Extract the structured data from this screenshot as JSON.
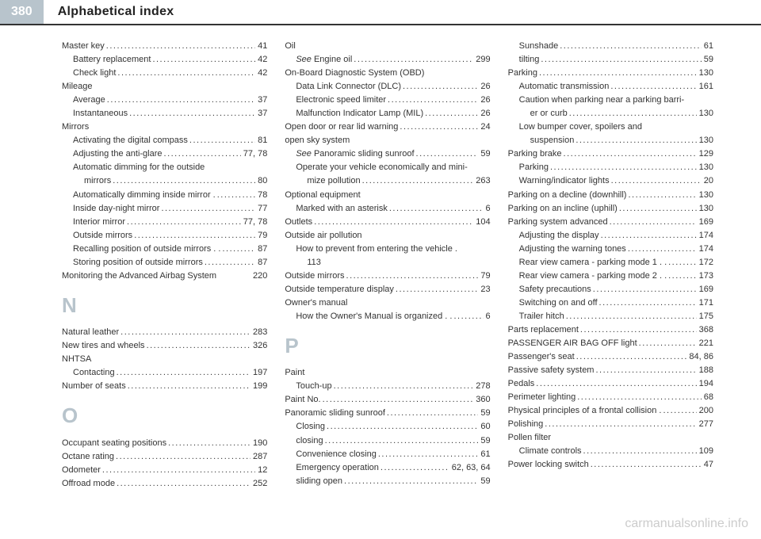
{
  "header": {
    "page_num": "380",
    "title": "Alphabetical index"
  },
  "watermark": "carmanualsonline.info",
  "col1": [
    {
      "t": "e",
      "label": "Master key",
      "pg": "41"
    },
    {
      "t": "s",
      "label": "Battery replacement",
      "pg": "42"
    },
    {
      "t": "s",
      "label": "Check light",
      "pg": "42"
    },
    {
      "t": "h",
      "label": "Mileage"
    },
    {
      "t": "s",
      "label": "Average",
      "pg": "37"
    },
    {
      "t": "s",
      "label": "Instantaneous",
      "pg": "37"
    },
    {
      "t": "h",
      "label": "Mirrors"
    },
    {
      "t": "s",
      "label": "Activating the digital compass",
      "pg": "81"
    },
    {
      "t": "s",
      "label": "Adjusting the anti-glare",
      "pg": "77, 78"
    },
    {
      "t": "w",
      "label": "Automatic dimming for the outside"
    },
    {
      "t": "s2",
      "label": "mirrors",
      "pg": "80"
    },
    {
      "t": "s",
      "label": "Automatically dimming inside mirror .",
      "pg": "78"
    },
    {
      "t": "s",
      "label": "Inside day-night mirror",
      "pg": "77"
    },
    {
      "t": "s",
      "label": "Interior mirror",
      "pg": "77, 78"
    },
    {
      "t": "s",
      "label": "Outside mirrors",
      "pg": "79"
    },
    {
      "t": "s",
      "label": "Recalling position of outside mirrors . .",
      "pg": "87"
    },
    {
      "t": "s",
      "label": "Storing position of outside mirrors",
      "pg": "87"
    },
    {
      "t": "e",
      "label": "Monitoring the Advanced Airbag System",
      "pg": "220",
      "nodots": true
    },
    {
      "t": "L",
      "label": "N"
    },
    {
      "t": "e",
      "label": "Natural leather",
      "pg": "283"
    },
    {
      "t": "e",
      "label": "New tires and wheels",
      "pg": "326"
    },
    {
      "t": "h",
      "label": "NHTSA"
    },
    {
      "t": "s",
      "label": "Contacting",
      "pg": "197"
    },
    {
      "t": "e",
      "label": "Number of seats",
      "pg": "199"
    },
    {
      "t": "L",
      "label": "O"
    },
    {
      "t": "e",
      "label": "Occupant seating positions",
      "pg": "190"
    },
    {
      "t": "e",
      "label": "Octane rating",
      "pg": "287"
    },
    {
      "t": "e",
      "label": "Odometer",
      "pg": "12"
    },
    {
      "t": "e",
      "label": "Offroad mode",
      "pg": "252"
    }
  ],
  "col2": [
    {
      "t": "h",
      "label": "Oil"
    },
    {
      "t": "s",
      "label": "See Engine oil",
      "pg": "299",
      "italic": "See"
    },
    {
      "t": "h",
      "label": "On-Board Diagnostic System (OBD)"
    },
    {
      "t": "s",
      "label": "Data Link Connector (DLC)",
      "pg": "26"
    },
    {
      "t": "s",
      "label": "Electronic speed limiter",
      "pg": "26"
    },
    {
      "t": "s",
      "label": "Malfunction Indicator Lamp (MIL)",
      "pg": "26"
    },
    {
      "t": "e",
      "label": "Open door or rear lid warning",
      "pg": "24"
    },
    {
      "t": "h",
      "label": "open sky system"
    },
    {
      "t": "s",
      "label": "See Panoramic sliding sunroof",
      "pg": "59",
      "italic": "See"
    },
    {
      "t": "w",
      "label": "Operate your vehicle economically and mini-"
    },
    {
      "t": "s2",
      "label": "mize pollution",
      "pg": "263"
    },
    {
      "t": "h",
      "label": "Optional equipment"
    },
    {
      "t": "s",
      "label": "Marked with an asterisk",
      "pg": "6"
    },
    {
      "t": "e",
      "label": "Outlets",
      "pg": "104"
    },
    {
      "t": "h",
      "label": "Outside air pollution"
    },
    {
      "t": "w",
      "label": "How to prevent from entering the vehicle ."
    },
    {
      "t": "s2n",
      "label": "113"
    },
    {
      "t": "e",
      "label": "Outside mirrors",
      "pg": "79"
    },
    {
      "t": "e",
      "label": "Outside temperature display",
      "pg": "23"
    },
    {
      "t": "h",
      "label": "Owner's manual"
    },
    {
      "t": "s",
      "label": "How the Owner's Manual is organized . .",
      "pg": "6"
    },
    {
      "t": "L",
      "label": "P"
    },
    {
      "t": "h",
      "label": "Paint"
    },
    {
      "t": "s",
      "label": "Touch-up",
      "pg": "278"
    },
    {
      "t": "e",
      "label": "Paint No.",
      "pg": "360"
    },
    {
      "t": "e",
      "label": "Panoramic sliding sunroof",
      "pg": "59"
    },
    {
      "t": "s",
      "label": "Closing",
      "pg": "60"
    },
    {
      "t": "s",
      "label": "closing",
      "pg": "59"
    },
    {
      "t": "s",
      "label": "Convenience closing",
      "pg": "61"
    },
    {
      "t": "s",
      "label": "Emergency operation",
      "pg": "62, 63, 64"
    },
    {
      "t": "s",
      "label": "sliding open",
      "pg": "59"
    }
  ],
  "col3": [
    {
      "t": "s",
      "label": "Sunshade",
      "pg": "61"
    },
    {
      "t": "s",
      "label": "tilting",
      "pg": "59"
    },
    {
      "t": "e",
      "label": "Parking",
      "pg": "130"
    },
    {
      "t": "s",
      "label": "Automatic transmission",
      "pg": "161"
    },
    {
      "t": "w",
      "label": "Caution when parking near a parking barri-"
    },
    {
      "t": "s2",
      "label": "er or curb",
      "pg": "130"
    },
    {
      "t": "w",
      "label": "Low bumper cover, spoilers and"
    },
    {
      "t": "s2",
      "label": "suspension",
      "pg": "130"
    },
    {
      "t": "e",
      "label": "Parking brake",
      "pg": "129"
    },
    {
      "t": "s",
      "label": "Parking",
      "pg": "130"
    },
    {
      "t": "s",
      "label": "Warning/indicator lights",
      "pg": "20"
    },
    {
      "t": "e",
      "label": "Parking on a decline (downhill)",
      "pg": "130"
    },
    {
      "t": "e",
      "label": "Parking on an incline (uphill)",
      "pg": "130"
    },
    {
      "t": "e",
      "label": "Parking system advanced",
      "pg": "169"
    },
    {
      "t": "s",
      "label": "Adjusting the display",
      "pg": "174"
    },
    {
      "t": "s",
      "label": "Adjusting the warning tones",
      "pg": "174"
    },
    {
      "t": "s",
      "label": "Rear view camera - parking mode 1 . .",
      "pg": "172"
    },
    {
      "t": "s",
      "label": "Rear view camera - parking mode 2 . .",
      "pg": "173"
    },
    {
      "t": "s",
      "label": "Safety precautions",
      "pg": "169"
    },
    {
      "t": "s",
      "label": "Switching on and off",
      "pg": "171"
    },
    {
      "t": "s",
      "label": "Trailer hitch",
      "pg": "175"
    },
    {
      "t": "e",
      "label": "Parts replacement",
      "pg": "368"
    },
    {
      "t": "e",
      "label": "PASSENGER AIR BAG OFF light",
      "pg": "221"
    },
    {
      "t": "e",
      "label": "Passenger's seat",
      "pg": "84, 86"
    },
    {
      "t": "e",
      "label": "Passive safety system",
      "pg": "188"
    },
    {
      "t": "e",
      "label": "Pedals",
      "pg": "194"
    },
    {
      "t": "e",
      "label": "Perimeter lighting",
      "pg": "68"
    },
    {
      "t": "e",
      "label": "Physical principles of a frontal collision .",
      "pg": "200"
    },
    {
      "t": "e",
      "label": "Polishing",
      "pg": "277"
    },
    {
      "t": "h",
      "label": "Pollen filter"
    },
    {
      "t": "s",
      "label": "Climate controls",
      "pg": "109"
    },
    {
      "t": "e",
      "label": "Power locking switch",
      "pg": "47"
    }
  ]
}
